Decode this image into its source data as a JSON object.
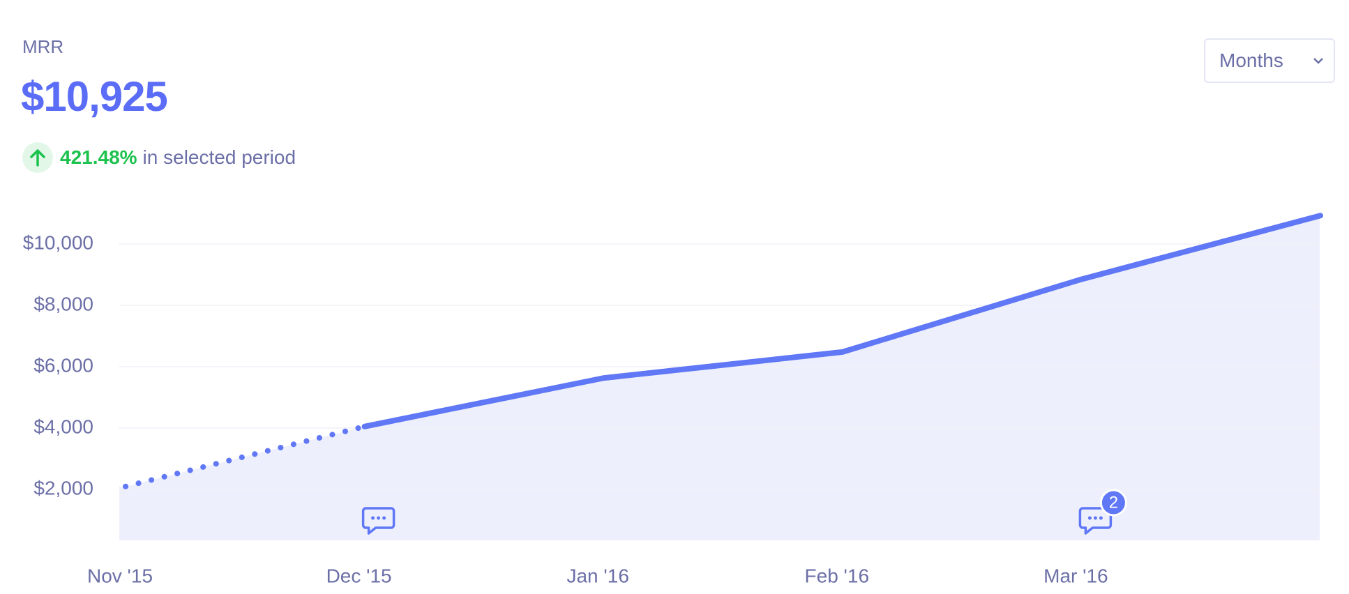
{
  "header": {
    "label": "MRR",
    "value": "$10,925",
    "change": "421.48%",
    "change_text": "in selected period"
  },
  "controls": {
    "period": "Months"
  },
  "chart_data": {
    "type": "line",
    "categories": [
      "Nov '15",
      "Dec '15",
      "Jan '16",
      "Feb '16",
      "Mar '16",
      null
    ],
    "values": [
      2095,
      4050,
      5630,
      6480,
      8850,
      10925
    ],
    "color": "#6077f6",
    "area_color": "#edf0fc",
    "ylim": [
      340,
      11000
    ],
    "yticks": [
      {
        "value": 2000,
        "label": "$2,000"
      },
      {
        "value": 4000,
        "label": "$4,000"
      },
      {
        "value": 6000,
        "label": "$6,000"
      },
      {
        "value": 8000,
        "label": "$8,000"
      },
      {
        "value": 10000,
        "label": "$10,000"
      }
    ],
    "grid": true,
    "comments": [
      {
        "category": "Dec '15"
      },
      {
        "category": "Mar '16",
        "count": 2
      }
    ]
  }
}
